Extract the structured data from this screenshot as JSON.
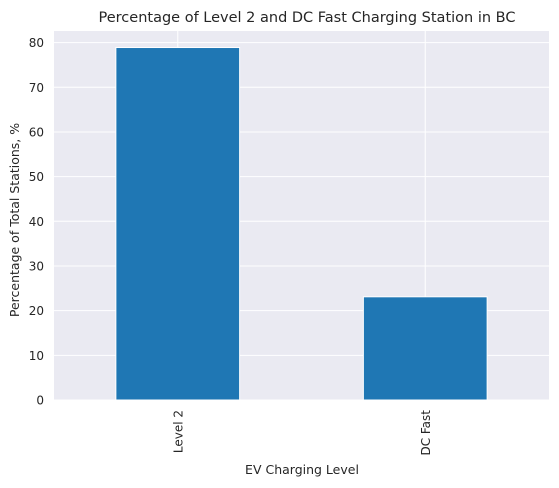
{
  "chart_data": {
    "type": "bar",
    "title": "Percentage of Level 2 and DC Fast Charging Station in BC",
    "xlabel": "EV Charging Level",
    "ylabel": "Percentage of Total Stations, %",
    "categories": [
      "Level 2",
      "DC Fast"
    ],
    "values": [
      78.9,
      23.1
    ],
    "ylim": [
      0,
      82.6
    ],
    "yticks": [
      0,
      10,
      20,
      30,
      40,
      50,
      60,
      70,
      80
    ],
    "grid": true,
    "legend": "none",
    "bar_color": "#1f77b4",
    "background_color": "#eaeaf2",
    "grid_color": "#ffffff"
  }
}
